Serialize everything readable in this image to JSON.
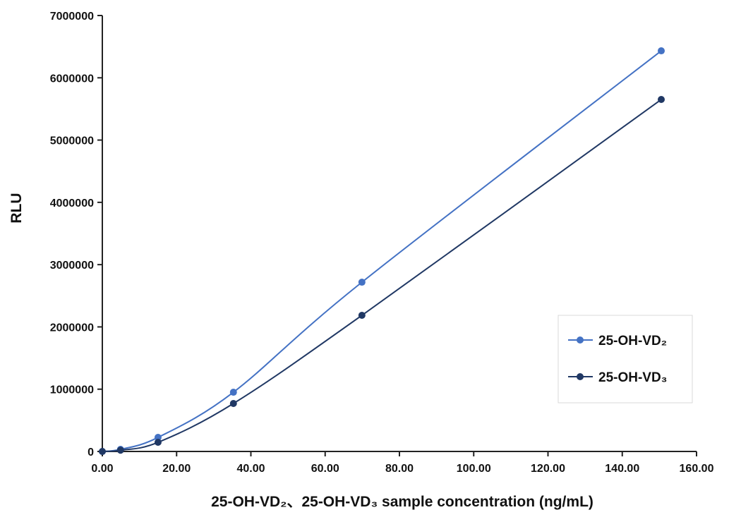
{
  "chart_data": {
    "type": "line",
    "xlabel": "25-OH-VD₂、25-OH-VD₃ sample concentration (ng/mL)",
    "ylabel": "RLU",
    "xlim": [
      0,
      160
    ],
    "ylim": [
      0,
      7000000
    ],
    "xticks": [
      "0.00",
      "20.00",
      "40.00",
      "60.00",
      "80.00",
      "100.00",
      "120.00",
      "140.00",
      "160.00"
    ],
    "yticks": [
      "0",
      "1000000",
      "2000000",
      "3000000",
      "4000000",
      "5000000",
      "6000000",
      "7000000"
    ],
    "grid": false,
    "smoothed": true,
    "legend_placement": "right",
    "series": [
      {
        "name": "25-OH-VD₂",
        "color": "#4472C4",
        "x": [
          0,
          4.9,
          15.0,
          35.3,
          69.9,
          150.5
        ],
        "y": [
          0,
          34000,
          226000,
          951000,
          2718000,
          6433000
        ]
      },
      {
        "name": "25-OH-VD₃",
        "color": "#203864",
        "x": [
          0,
          4.9,
          15.0,
          35.3,
          69.9,
          150.5
        ],
        "y": [
          0,
          20000,
          147000,
          770000,
          2186000,
          5652000
        ]
      }
    ]
  }
}
